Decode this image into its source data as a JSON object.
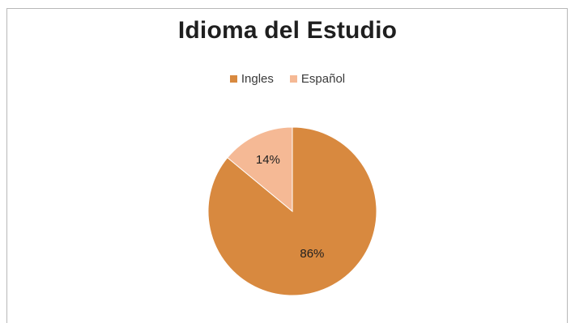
{
  "chart_data": {
    "type": "pie",
    "title": "Idioma del Estudio",
    "categories": [
      "Ingles",
      "Español"
    ],
    "values": [
      86,
      14
    ],
    "labels": [
      "86%",
      "14%"
    ],
    "colors": [
      "#d8893f",
      "#f5b995"
    ],
    "legend_position": "top"
  }
}
